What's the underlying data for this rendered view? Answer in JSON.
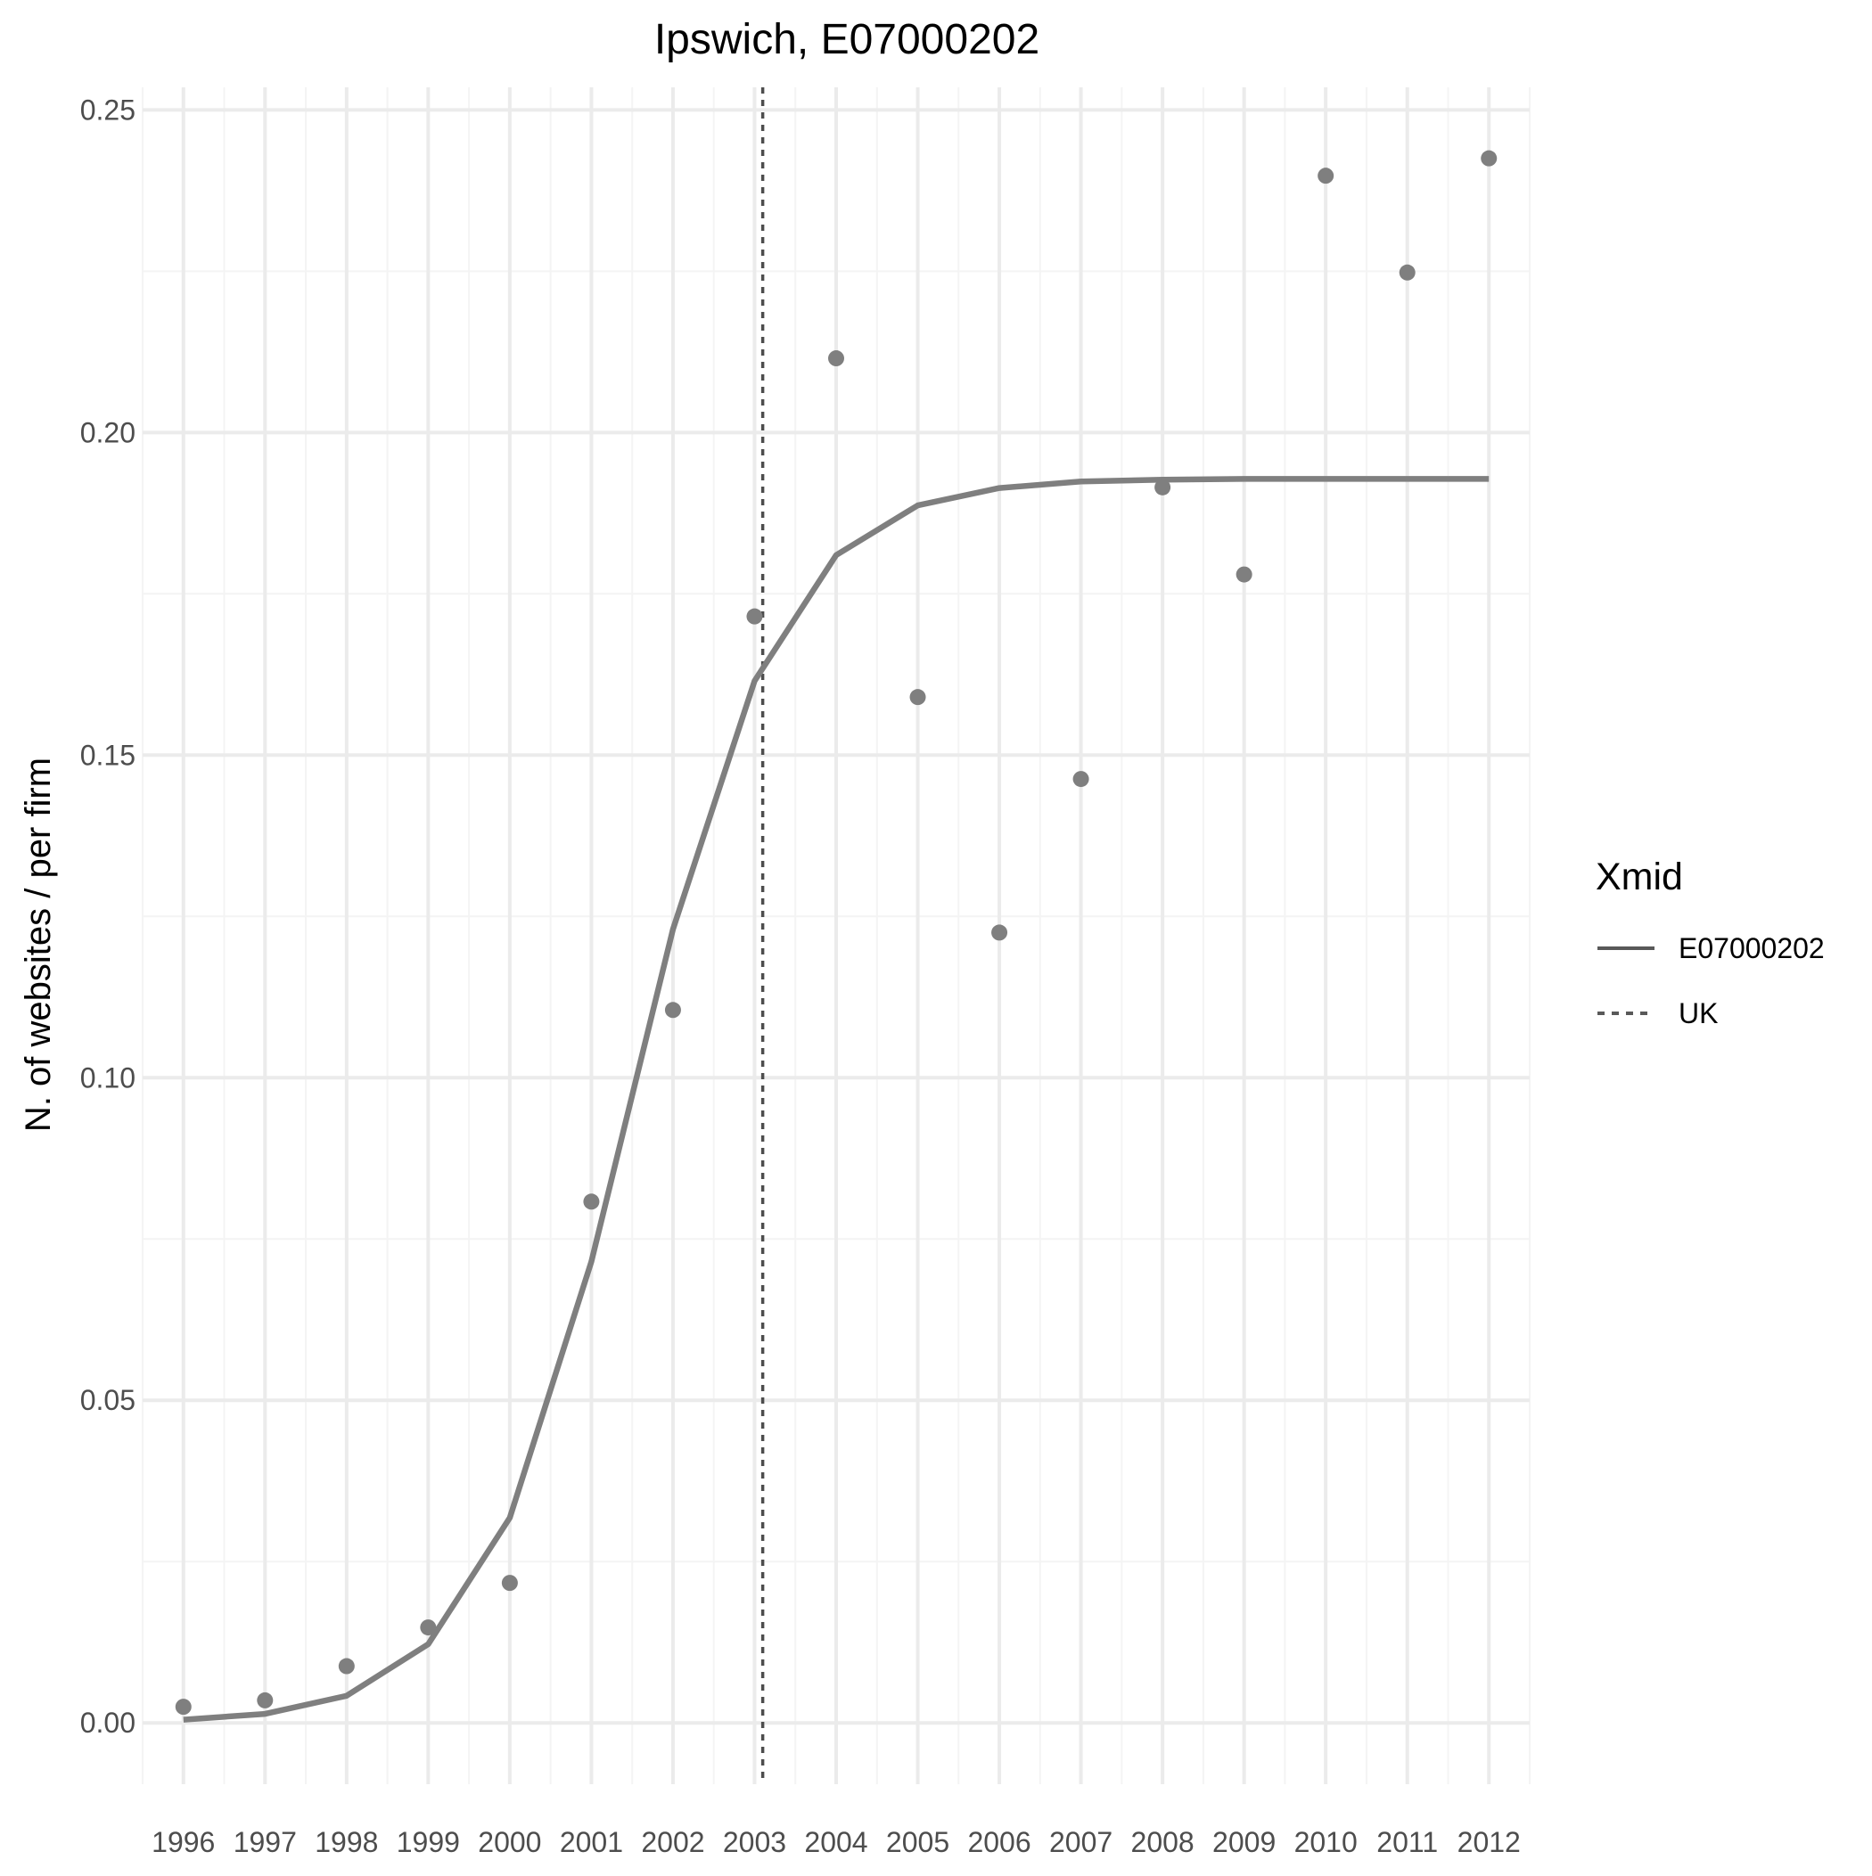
{
  "chart_data": {
    "type": "scatter",
    "title": "Ipswich, E07000202",
    "xlabel": "",
    "ylabel": "N. of websites / per firm",
    "x": [
      1996,
      1997,
      1998,
      1999,
      2000,
      2001,
      2002,
      2003,
      2004,
      2005,
      2006,
      2007,
      2008,
      2009,
      2010,
      2011,
      2012
    ],
    "x_tick_labels": [
      "1996",
      "1997",
      "1998",
      "1999",
      "2000",
      "2001",
      "2002",
      "2003",
      "2004",
      "2005",
      "2006",
      "2007",
      "2008",
      "2009",
      "2010",
      "2011",
      "2012"
    ],
    "y_ticks": [
      0.0,
      0.05,
      0.1,
      0.15,
      0.2,
      0.25
    ],
    "y_tick_labels": [
      "0.00",
      "0.05",
      "0.10",
      "0.15",
      "0.20",
      "0.25"
    ],
    "xlim": [
      1995.5,
      2012.5
    ],
    "ylim": [
      -0.0095,
      0.2535
    ],
    "points": [
      0.0025,
      0.0035,
      0.0088,
      0.0148,
      0.0217,
      0.0808,
      0.1105,
      0.1715,
      0.2115,
      0.159,
      0.1225,
      0.1463,
      0.1915,
      0.178,
      0.2398,
      0.2248,
      0.2425
    ],
    "fitted_line": {
      "name": "E07000202",
      "values": [
        0.0005,
        0.0014,
        0.0042,
        0.0122,
        0.0318,
        0.0715,
        0.123,
        0.1615,
        0.181,
        0.1887,
        0.1914,
        0.1924,
        0.1927,
        0.1928,
        0.1928,
        0.1928,
        0.1928
      ]
    },
    "reference_line": {
      "name": "UK",
      "x": 2003.1,
      "style": "dotted"
    },
    "legend": {
      "title": "Xmid",
      "entries": [
        {
          "label": "E07000202",
          "style": "solid"
        },
        {
          "label": "UK",
          "style": "dotted"
        }
      ],
      "placement": "right"
    },
    "grid": true,
    "colors": {
      "points": "#7f7f7f",
      "fitted_line": "#7f7f7f",
      "reference_line": "#4d4d4d",
      "grid_major": "#ebebeb",
      "grid_minor": "#f4f4f4",
      "legend_line": "#595959"
    }
  }
}
